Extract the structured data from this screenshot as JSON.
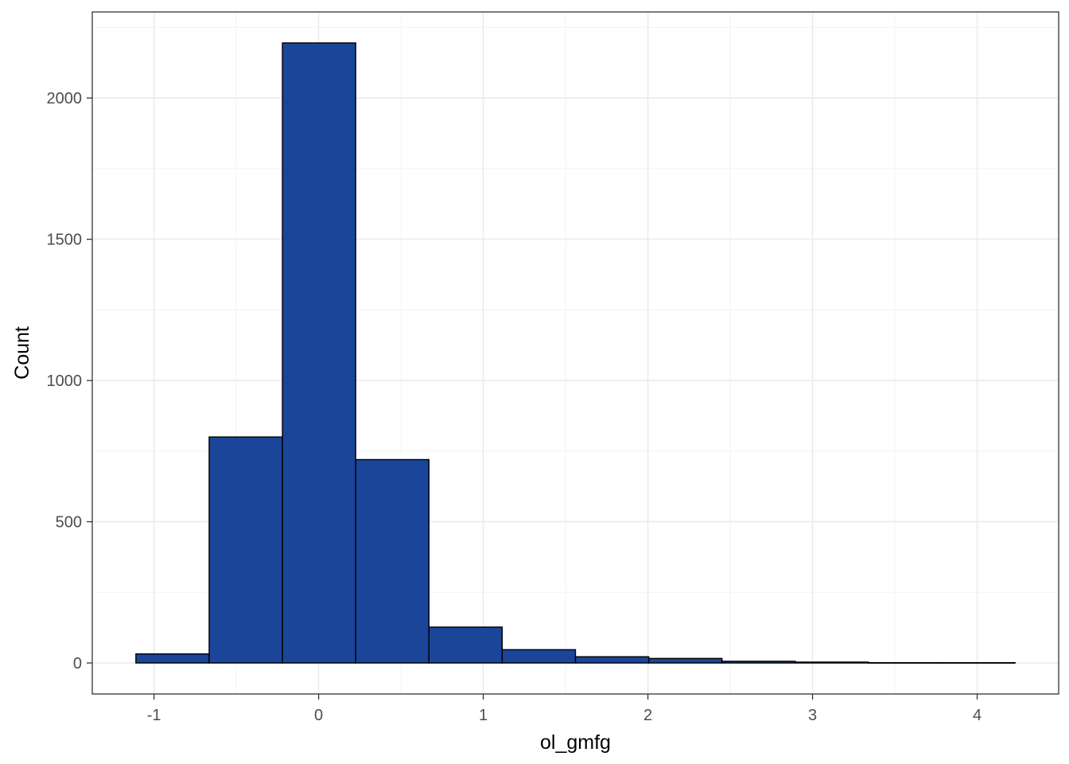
{
  "chart_data": {
    "type": "bar",
    "subtype": "histogram",
    "title": "",
    "xlabel": "ol_gmfg",
    "ylabel": "Count",
    "bins": [
      {
        "x0": -1.11,
        "x1": -0.665,
        "count": 32
      },
      {
        "x0": -0.665,
        "x1": -0.22,
        "count": 800
      },
      {
        "x0": -0.22,
        "x1": 0.225,
        "count": 2195
      },
      {
        "x0": 0.225,
        "x1": 0.67,
        "count": 720
      },
      {
        "x0": 0.67,
        "x1": 1.115,
        "count": 127
      },
      {
        "x0": 1.115,
        "x1": 1.56,
        "count": 47
      },
      {
        "x0": 1.56,
        "x1": 2.005,
        "count": 22
      },
      {
        "x0": 2.005,
        "x1": 2.45,
        "count": 16
      },
      {
        "x0": 2.45,
        "x1": 2.895,
        "count": 6
      },
      {
        "x0": 2.895,
        "x1": 3.34,
        "count": 3
      },
      {
        "x0": 3.34,
        "x1": 3.785,
        "count": 1
      },
      {
        "x0": 3.785,
        "x1": 4.23,
        "count": 1
      }
    ],
    "xlim": [
      -1.375,
      4.495
    ],
    "ylim": [
      -109.75,
      2304.75
    ],
    "x_ticks": [
      -1,
      0,
      1,
      2,
      3,
      4
    ],
    "x_tick_labels": [
      "-1",
      "0",
      "1",
      "2",
      "3",
      "4"
    ],
    "y_ticks": [
      0,
      500,
      1000,
      1500,
      2000
    ],
    "y_tick_labels": [
      "0",
      "500",
      "1000",
      "1500",
      "2000"
    ],
    "grid": true,
    "legend": "none",
    "colors": {
      "bar_fill": "#1a4599",
      "bar_stroke": "#000000",
      "grid_major": "#ebebeb",
      "grid_minor": "#f2f2f2",
      "panel_border": "#333333",
      "tick_text": "#4d4d4d"
    }
  }
}
